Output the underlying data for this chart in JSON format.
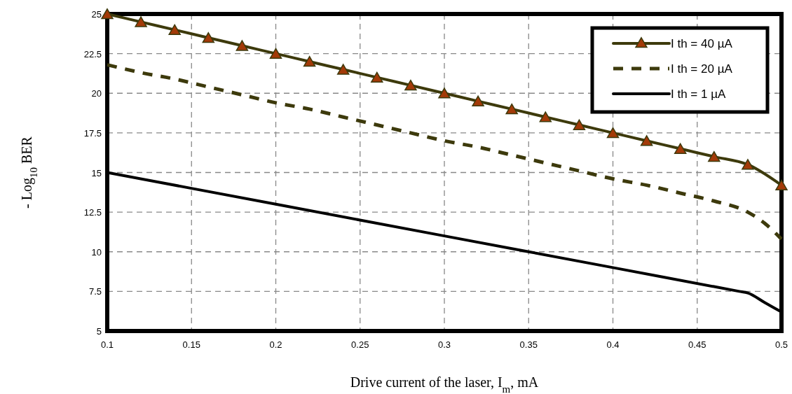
{
  "chart_data": {
    "type": "line",
    "xlabel": "Drive current of the laser, I$_{m}$, mA",
    "ylabel": "- Log$_{10}$ BER",
    "xlim": [
      0.1,
      0.5
    ],
    "xticks": [
      0.1,
      0.15,
      0.2,
      0.25,
      0.3,
      0.35,
      0.4,
      0.45,
      0.5
    ],
    "ylim": [
      5,
      25
    ],
    "yticks": [
      5,
      7.5,
      10,
      12.5,
      15,
      17.5,
      20,
      22.5,
      25
    ],
    "grid": true,
    "legend": "top right",
    "series": [
      {
        "name": "I th = 40 µA",
        "color": "#3d3a0c",
        "marker": "triangle",
        "line_style": "solid",
        "x": [
          0.1,
          0.12,
          0.14,
          0.16,
          0.18,
          0.2,
          0.22,
          0.24,
          0.26,
          0.28,
          0.3,
          0.32,
          0.34,
          0.36,
          0.38,
          0.4,
          0.42,
          0.44,
          0.46,
          0.48,
          0.5
        ],
        "values": [
          25,
          24.5,
          24,
          23.5,
          23,
          22.5,
          22,
          21.5,
          21,
          20.5,
          20,
          19.5,
          19,
          18.5,
          18,
          17.5,
          17,
          16.5,
          16,
          15.5,
          14.2
        ]
      },
      {
        "name": "I th = 20 µA",
        "color": "#3d3a0c",
        "marker": "none",
        "line_style": "dashed",
        "x": [
          0.1,
          0.12,
          0.14,
          0.16,
          0.18,
          0.2,
          0.22,
          0.24,
          0.26,
          0.28,
          0.3,
          0.32,
          0.34,
          0.36,
          0.38,
          0.4,
          0.42,
          0.44,
          0.46,
          0.48,
          0.49,
          0.5
        ],
        "values": [
          21.8,
          21.3,
          20.9,
          20.4,
          19.9,
          19.4,
          19,
          18.5,
          18,
          17.5,
          17,
          16.6,
          16.1,
          15.6,
          15.1,
          14.6,
          14.2,
          13.7,
          13.2,
          12.5,
          11.8,
          10.8
        ]
      },
      {
        "name": "I th = 1 µA",
        "color": "#000000",
        "marker": "none",
        "line_style": "solid",
        "x": [
          0.1,
          0.2,
          0.3,
          0.4,
          0.46,
          0.475,
          0.48,
          0.49,
          0.5
        ],
        "values": [
          15,
          13,
          11,
          9,
          7.8,
          7.5,
          7.4,
          6.8,
          6.2
        ]
      }
    ]
  }
}
